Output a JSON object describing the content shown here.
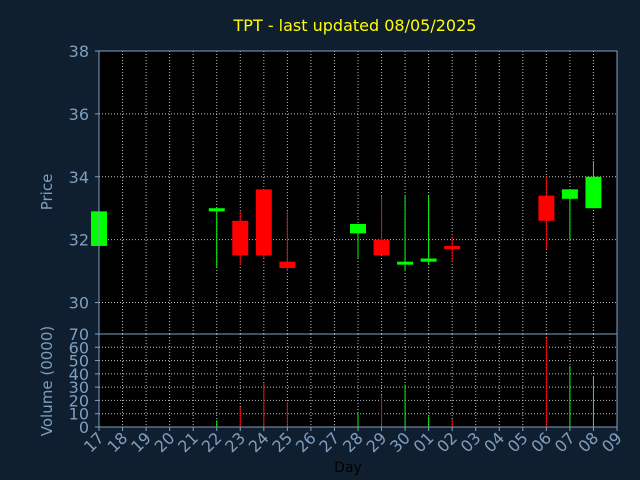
{
  "chart_data": {
    "type": "candlestick",
    "title": "TPT - last updated 08/05/2025",
    "xlabel": "Day",
    "ylabel_price": "Price",
    "ylabel_volume": "Volume (0000)",
    "price_ylim": [
      29,
      38
    ],
    "price_ticks": [
      "30",
      "32",
      "34",
      "36",
      "38"
    ],
    "volume_ylim": [
      0,
      70
    ],
    "volume_ticks": [
      "0",
      "10",
      "20",
      "30",
      "40",
      "50",
      "60",
      "70"
    ],
    "x_ticks": [
      "17",
      "18",
      "19",
      "20",
      "21",
      "22",
      "23",
      "24",
      "25",
      "26",
      "27",
      "28",
      "29",
      "30",
      "01",
      "02",
      "03",
      "04",
      "05",
      "06",
      "07",
      "08",
      "09"
    ],
    "grid": true,
    "colors": {
      "background": "#0f1f30",
      "up": "#00ff00",
      "down": "#ff0000",
      "title": "#ffff00",
      "axis_text": "#7f9fbf",
      "frame": "#7f9fbf",
      "grid": "#c0c0c0"
    },
    "candles": [
      {
        "day": "17",
        "open": 31.8,
        "high": 32.9,
        "low": 31.8,
        "close": 32.9,
        "volume": 0
      },
      {
        "day": "22",
        "open": 32.9,
        "high": 33.0,
        "low": 31.1,
        "close": 33.0,
        "volume": 5
      },
      {
        "day": "23",
        "open": 32.6,
        "high": 32.9,
        "low": 31.2,
        "close": 31.5,
        "volume": 15
      },
      {
        "day": "24",
        "open": 33.6,
        "high": 33.6,
        "low": 31.4,
        "close": 31.5,
        "volume": 33
      },
      {
        "day": "25",
        "open": 31.3,
        "high": 32.9,
        "low": 31.0,
        "close": 31.1,
        "volume": 19
      },
      {
        "day": "28",
        "open": 32.2,
        "high": 32.5,
        "low": 31.4,
        "close": 32.5,
        "volume": 10
      },
      {
        "day": "29",
        "open": 32.0,
        "high": 33.4,
        "low": 31.5,
        "close": 31.5,
        "volume": 24
      },
      {
        "day": "30",
        "open": 31.3,
        "high": 33.4,
        "low": 31.0,
        "close": 31.3,
        "volume": 32
      },
      {
        "day": "01",
        "open": 31.3,
        "high": 33.4,
        "low": 31.2,
        "close": 31.4,
        "volume": 8
      },
      {
        "day": "02",
        "open": 31.8,
        "high": 32.1,
        "low": 31.3,
        "close": 31.7,
        "volume": 6
      },
      {
        "day": "06",
        "open": 33.4,
        "high": 34.0,
        "low": 31.7,
        "close": 32.6,
        "volume": 67
      },
      {
        "day": "07",
        "open": 33.3,
        "high": 33.6,
        "low": 32.0,
        "close": 33.6,
        "volume": 46
      },
      {
        "day": "08",
        "open": 33.0,
        "high": 34.5,
        "low": 33.0,
        "close": 34.0,
        "volume": 38
      }
    ]
  }
}
